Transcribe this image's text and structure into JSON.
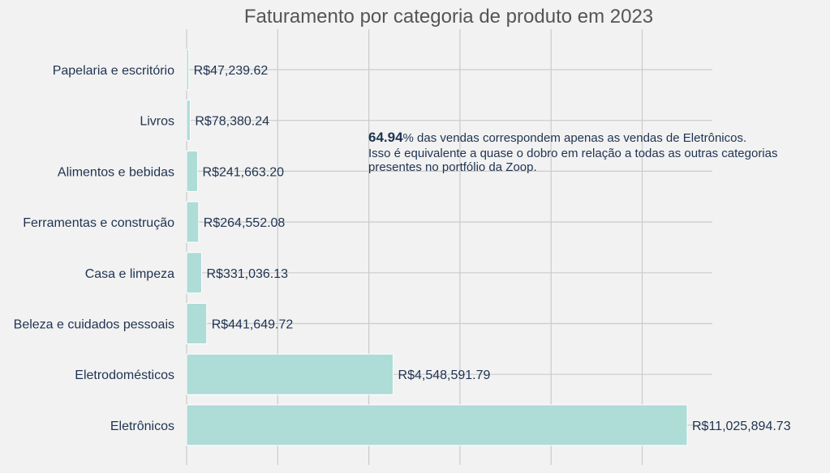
{
  "chart_data": {
    "type": "bar",
    "orientation": "horizontal",
    "title": "Faturamento por categoria de produto em 2023",
    "xlabel": "",
    "ylabel": "",
    "categories": [
      "Papelaria e escritório",
      "Livros",
      "Alimentos e bebidas",
      "Ferramentas e construção",
      "Casa e limpeza",
      "Beleza e cuidados pessoais",
      "Eletrodomésticos",
      "Eletrônicos"
    ],
    "values": [
      47239.62,
      78380.24,
      241663.2,
      264552.08,
      331036.13,
      441649.72,
      4548591.79,
      11025894.73
    ],
    "value_labels": [
      "R$47,239.62",
      "R$78,380.24",
      "R$241,663.20",
      "R$264,552.08",
      "R$331,036.13",
      "R$441,649.72",
      "R$4,548,591.79",
      "R$11,025,894.73"
    ],
    "xlim": [
      0,
      11600000
    ],
    "grid": true,
    "bar_color": "#aedcd6",
    "annotation": {
      "highlight": "64.94",
      "line1": "% das vendas correspondem apenas as vendas de Eletrônicos.",
      "line2": "Isso é equivalente a quase o dobro em relação a todas as outras categorias",
      "line3": "presentes no portfólio da Zoop."
    }
  }
}
